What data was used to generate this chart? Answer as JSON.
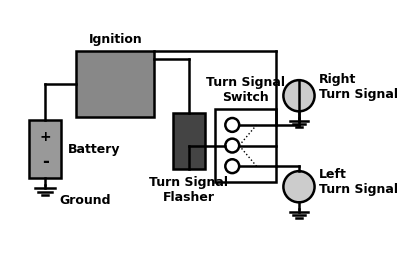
{
  "bg_color": "#ffffff",
  "line_color": "#000000",
  "ignition_color": "#888888",
  "flasher_color": "#444444",
  "switch_color": "#ffffff",
  "battery_color": "#999999",
  "bulb_color": "#cccccc",
  "ignition_label": "Ignition",
  "battery_label": "Battery",
  "battery_plus": "+",
  "battery_minus": "-",
  "ground_label": "Ground",
  "flasher_label": "Turn Signal\nFlasher",
  "switch_label": "Turn Signal\nSwitch",
  "right_label": "Right\nTurn Signal",
  "left_label": "Left\nTurn Signal",
  "font_bold": 9,
  "lw": 1.8
}
